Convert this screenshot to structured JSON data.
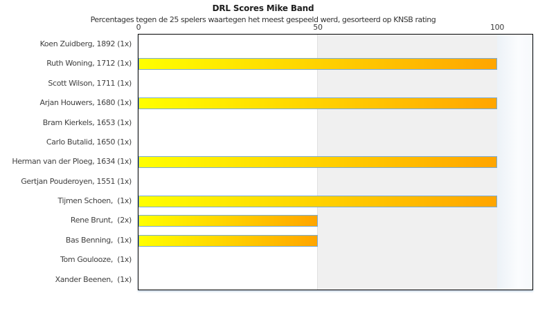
{
  "chart_data": {
    "type": "bar",
    "orientation": "horizontal",
    "title": "DRL Scores Mike Band",
    "subtitle": "Percentages tegen de 25 spelers waartegen het meest gespeeld werd, gesorteerd op KNSB rating",
    "categories": [
      "Koen Zuidberg, 1892 (1x)",
      "Ruth Woning, 1712 (1x)",
      "Scott Wilson, 1711 (1x)",
      "Arjan Houwers, 1680 (1x)",
      "Bram Kierkels, 1653 (1x)",
      "Carlo Butalid, 1650 (1x)",
      "Herman van der Ploeg, 1634 (1x)",
      "Gertjan Pouderoyen, 1551 (1x)",
      "Tijmen Schoen,  (1x)",
      "Rene Brunt,  (2x)",
      "Bas Benning,  (1x)",
      "Tom Goulooze,  (1x)",
      "Xander Beenen,  (1x)"
    ],
    "values": [
      0,
      100,
      0,
      100,
      0,
      0,
      100,
      0,
      100,
      50,
      50,
      0,
      0
    ],
    "xlabel": "",
    "ylabel": "",
    "xlim": [
      0,
      110
    ],
    "x_ticks": [
      0,
      50,
      100
    ],
    "legend_position": "none",
    "grid": "shaded band from 50 to 100",
    "colors": {
      "bar_gradient_start": "#ffff00",
      "bar_gradient_end": "#ffa500",
      "bar_border": "#78abd6",
      "shaded_band": "#f0f0f0",
      "right_margin_tint": "#ecf2f7",
      "plot_border": "#000000",
      "text": "#3f3f3f"
    }
  }
}
